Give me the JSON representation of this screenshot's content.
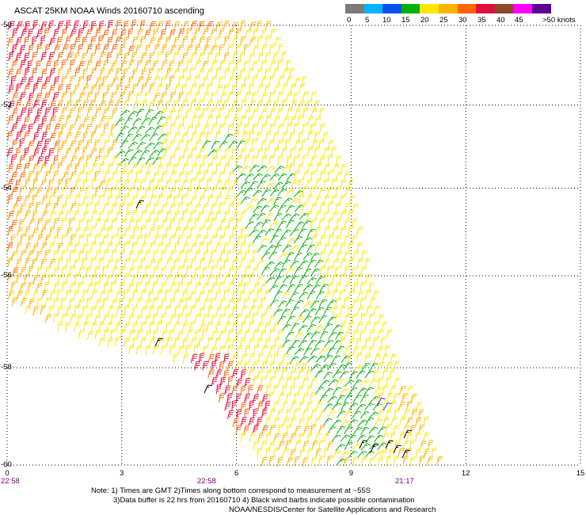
{
  "title": "ASCAT 25KM NOAA Winds 20160710 ascending",
  "legend": {
    "labels": [
      "0",
      "5",
      "10",
      "15",
      "20",
      "25",
      "30",
      "35",
      "40",
      "45",
      ">50 knots"
    ],
    "colors": [
      "#7a7a7a",
      "#00b4ff",
      "#0050f0",
      "#00b000",
      "#ffe600",
      "#ffb400",
      "#ff6400",
      "#e0103c",
      "#8b4a2b",
      "#ff00ff",
      "#5a0090"
    ]
  },
  "map": {
    "lon_range": [
      0,
      15
    ],
    "lat_range": [
      -60,
      -50
    ],
    "grid": true,
    "projection": "mercator"
  },
  "axes": {
    "lat_labels": [
      "-50",
      "-52",
      "-54",
      "-56",
      "-58",
      "-60"
    ],
    "lon_labels": [
      "0",
      "3",
      "6",
      "9",
      "12",
      "15"
    ]
  },
  "times": [
    "22:58",
    "22:58",
    "21:17"
  ],
  "notes": [
    "Note: 1) Times are GMT 2)Times along bottom correspond to measurement at ~55S",
    "3)Data buffer is 22 hrs from 20160710 4) Black wind barbs indicate possible contamination",
    "NOAA/NESDIS/Center for Satellite Applications and Research"
  ]
}
